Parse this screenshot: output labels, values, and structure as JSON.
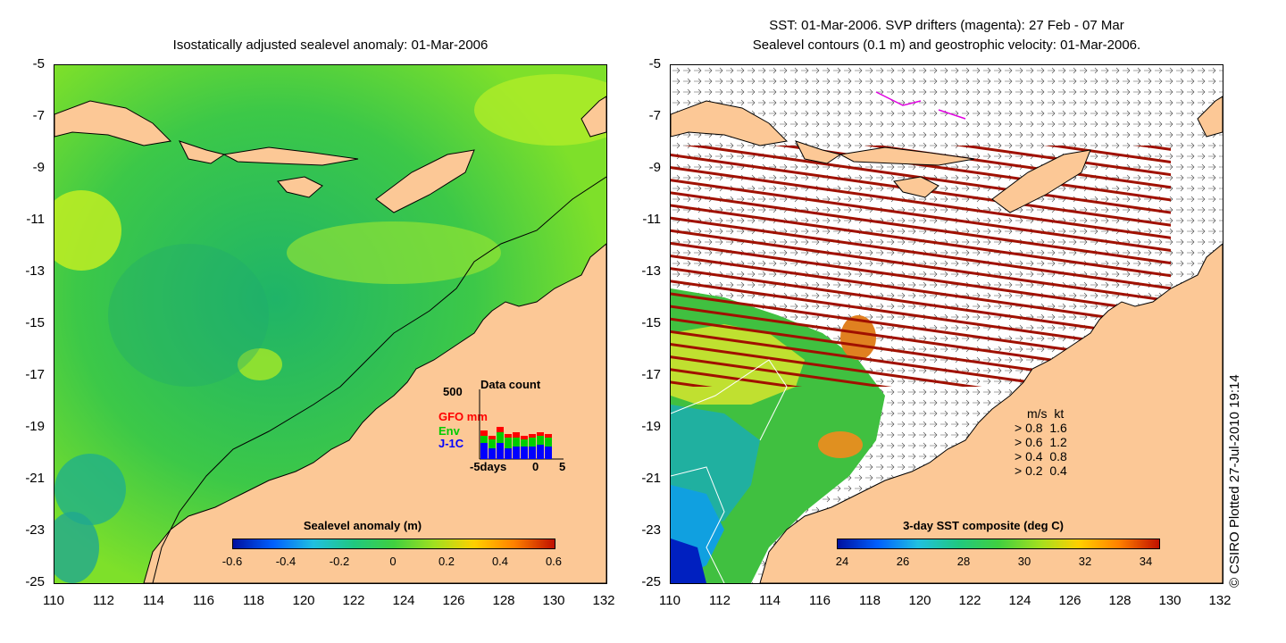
{
  "left_panel": {
    "title": "Isostatically adjusted sealevel anomaly: 01-Mar-2006",
    "yticks": [
      "-5",
      "-7",
      "-9",
      "-11",
      "-13",
      "-15",
      "-17",
      "-19",
      "-21",
      "-23",
      "-25"
    ],
    "xticks": [
      "110",
      "112",
      "114",
      "116",
      "118",
      "120",
      "122",
      "124",
      "126",
      "128",
      "130",
      "132"
    ],
    "colorbar": {
      "title": "Sealevel anomaly (m)",
      "labels": [
        "-0.6",
        "-0.4",
        "-0.2",
        "0",
        "0.2",
        "0.4",
        "0.6"
      ]
    },
    "data_count": {
      "max_label": "500",
      "title": "Data count",
      "missions": [
        "GFO mm",
        "Env",
        "J-1C"
      ],
      "mission_colors": [
        "#ff0000",
        "#00cc00",
        "#0000ff"
      ],
      "x_labels": [
        "-5days",
        "0",
        "5"
      ]
    }
  },
  "right_panel": {
    "title_line1": "SST: 01-Mar-2006. SVP drifters (magenta): 27 Feb - 07 Mar",
    "title_line2": "Sealevel contours (0.1 m) and geostrophic velocity: 01-Mar-2006.",
    "yticks": [
      "-5",
      "-7",
      "-9",
      "-11",
      "-13",
      "-15",
      "-17",
      "-19",
      "-21",
      "-23",
      "-25"
    ],
    "xticks": [
      "110",
      "112",
      "114",
      "116",
      "118",
      "120",
      "122",
      "124",
      "126",
      "128",
      "130",
      "132"
    ],
    "colorbar": {
      "title": "3-day SST composite (deg C)",
      "labels": [
        "24",
        "26",
        "28",
        "30",
        "32",
        "34"
      ]
    },
    "velocity_legend": {
      "header": "m/s  kt",
      "rows": [
        "0.8  1.6",
        "0.6  1.2",
        "0.4  0.8",
        "0.2  0.4"
      ]
    }
  },
  "copyright": "© CSIRO Plotted 27-Jul-2010 19:14",
  "colors": {
    "land": "#fcc896",
    "ocean_green": "#3ccc3c",
    "cloud_red": "#a01000"
  }
}
